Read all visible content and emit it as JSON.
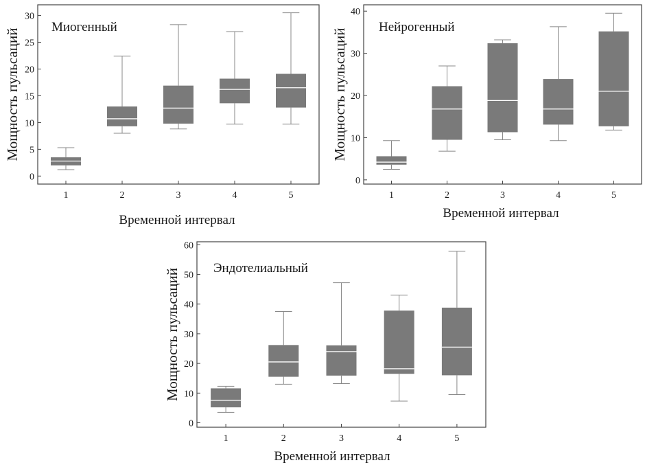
{
  "chart_data": [
    {
      "type": "boxplot",
      "title": "Миогенный",
      "xlabel": "Временной интервал",
      "ylabel": "Мощность пульсаций",
      "categories": [
        "1",
        "2",
        "3",
        "4",
        "5"
      ],
      "ylim": [
        -1.5,
        32
      ],
      "yticks": [
        0,
        5,
        10,
        15,
        20,
        25,
        30
      ],
      "boxes": [
        {
          "min": 1.2,
          "q1": 2.0,
          "median": 2.8,
          "q3": 3.5,
          "max": 5.3
        },
        {
          "min": 8.0,
          "q1": 9.3,
          "median": 10.7,
          "q3": 13.0,
          "max": 22.4
        },
        {
          "min": 8.8,
          "q1": 9.8,
          "median": 12.7,
          "q3": 16.9,
          "max": 28.3
        },
        {
          "min": 9.7,
          "q1": 13.6,
          "median": 16.2,
          "q3": 18.2,
          "max": 27.0
        },
        {
          "min": 9.7,
          "q1": 12.8,
          "median": 16.5,
          "q3": 19.1,
          "max": 30.5
        }
      ]
    },
    {
      "type": "boxplot",
      "title": "Нейрогенный",
      "xlabel": "Временной интервал",
      "ylabel": "Мощность пульсаций",
      "categories": [
        "1",
        "2",
        "3",
        "4",
        "5"
      ],
      "ylim": [
        -1,
        41.5
      ],
      "yticks": [
        0,
        10,
        20,
        30,
        40
      ],
      "boxes": [
        {
          "min": 2.5,
          "q1": 3.6,
          "median": 4.2,
          "q3": 5.6,
          "max": 9.3
        },
        {
          "min": 6.8,
          "q1": 9.5,
          "median": 16.8,
          "q3": 22.2,
          "max": 27.0
        },
        {
          "min": 9.5,
          "q1": 11.3,
          "median": 18.8,
          "q3": 32.4,
          "max": 33.2
        },
        {
          "min": 9.3,
          "q1": 13.1,
          "median": 16.8,
          "q3": 23.9,
          "max": 36.3
        },
        {
          "min": 11.8,
          "q1": 12.7,
          "median": 21.0,
          "q3": 35.2,
          "max": 39.5
        }
      ]
    },
    {
      "type": "boxplot",
      "title": "Эндотелиальный",
      "xlabel": "Временной интервал",
      "ylabel": "Мощность пульсаций",
      "categories": [
        "1",
        "2",
        "3",
        "4",
        "5"
      ],
      "ylim": [
        -1.5,
        61
      ],
      "yticks": [
        0,
        10,
        20,
        30,
        40,
        50,
        60
      ],
      "boxes": [
        {
          "min": 3.5,
          "q1": 5.2,
          "median": 7.6,
          "q3": 11.6,
          "max": 12.3
        },
        {
          "min": 13.0,
          "q1": 15.5,
          "median": 20.5,
          "q3": 26.2,
          "max": 37.5
        },
        {
          "min": 13.2,
          "q1": 15.9,
          "median": 24.0,
          "q3": 26.1,
          "max": 47.2
        },
        {
          "min": 7.3,
          "q1": 16.5,
          "median": 18.2,
          "q3": 37.8,
          "max": 43.0
        },
        {
          "min": 9.5,
          "q1": 16.0,
          "median": 25.5,
          "q3": 38.8,
          "max": 57.8
        }
      ]
    }
  ],
  "colors": {
    "box": "#7a7a7a",
    "median": "#ffffff",
    "whisker": "#888888",
    "frame": "#444444"
  }
}
